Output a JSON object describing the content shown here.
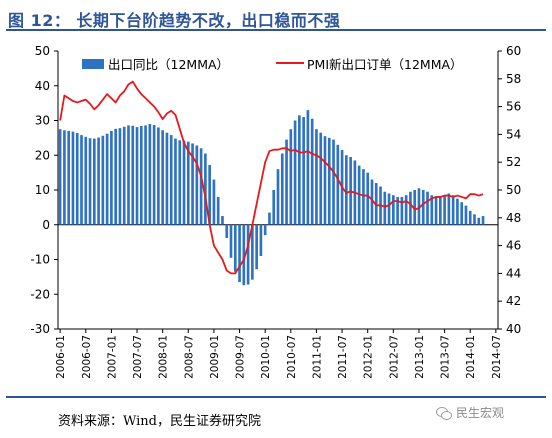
{
  "header": {
    "title": "图 12： 长期下台阶趋势不改，出口稳而不强"
  },
  "footer": {
    "source": "资料来源：Wind，民生证券研究院",
    "watermark": "民生宏观"
  },
  "colors": {
    "bar": "#2e72c1",
    "line": "#e41a1c",
    "accent": "#2e5597"
  },
  "chart_data": {
    "type": "bar+line",
    "title": "",
    "x_ticks": [
      "2006-01",
      "2006-07",
      "2007-01",
      "2007-07",
      "2008-01",
      "2008-07",
      "2009-01",
      "2009-07",
      "2010-01",
      "2010-07",
      "2011-01",
      "2011-07",
      "2012-01",
      "2012-07",
      "2013-01",
      "2013-07",
      "2014-01",
      "2014-07"
    ],
    "y_left": {
      "min": -30,
      "max": 50,
      "ticks": [
        -30,
        -20,
        -10,
        0,
        10,
        20,
        30,
        40,
        50
      ]
    },
    "y_right": {
      "min": 40,
      "max": 60,
      "ticks": [
        40,
        42,
        44,
        46,
        48,
        50,
        52,
        54,
        56,
        58,
        60
      ]
    },
    "legend": [
      "出口同比（12MMA）",
      "PMI新出口订单（12MMA）"
    ],
    "series": [
      {
        "name": "出口同比（12MMA）",
        "axis": "left",
        "type": "bar",
        "start": "2006-01",
        "values": [
          27.5,
          27.2,
          27.0,
          26.8,
          26.4,
          25.8,
          25.3,
          24.9,
          24.8,
          25.1,
          25.6,
          26.2,
          27.0,
          27.6,
          27.8,
          28.2,
          28.6,
          28.5,
          28.1,
          28.4,
          28.6,
          29.0,
          28.7,
          28.0,
          27.2,
          26.5,
          25.8,
          24.8,
          24.3,
          24.2,
          23.9,
          23.4,
          22.8,
          22.0,
          20.5,
          17.2,
          13.0,
          8.0,
          2.5,
          -3.8,
          -9.5,
          -13.5,
          -16.5,
          -17.4,
          -17.2,
          -15.8,
          -12.8,
          -9.0,
          -3.0,
          3.5,
          10.0,
          16.0,
          20.5,
          24.5,
          27.5,
          30.0,
          31.5,
          31.0,
          33.0,
          30.5,
          27.5,
          26.5,
          25.5,
          25.0,
          24.5,
          23.0,
          21.5,
          20.0,
          19.5,
          18.5,
          17.0,
          16.0,
          15.0,
          13.0,
          12.0,
          11.0,
          9.5,
          9.0,
          8.5,
          8.0,
          8.0,
          8.5,
          9.5,
          10.0,
          10.5,
          10.0,
          9.5,
          8.5,
          8.0,
          8.0,
          8.5,
          9.0,
          8.5,
          7.5,
          6.5,
          5.5,
          4.0,
          3.0,
          2.0,
          2.5
        ]
      },
      {
        "name": "PMI新出口订单（12MMA）",
        "axis": "right",
        "type": "line",
        "start": "2006-01",
        "values": [
          55.0,
          56.8,
          56.6,
          56.4,
          56.3,
          56.4,
          56.5,
          56.2,
          55.8,
          56.1,
          56.5,
          56.9,
          56.6,
          56.3,
          56.8,
          57.1,
          57.6,
          57.8,
          57.3,
          56.9,
          56.6,
          56.3,
          56.0,
          55.6,
          55.1,
          55.5,
          55.7,
          55.4,
          54.4,
          53.4,
          52.8,
          52.4,
          51.9,
          51.0,
          49.5,
          47.5,
          46.0,
          45.5,
          45.0,
          44.2,
          44.0,
          44.0,
          44.5,
          45.0,
          46.0,
          47.5,
          49.0,
          50.5,
          52.0,
          52.8,
          52.9,
          52.9,
          53.0,
          53.0,
          52.8,
          52.9,
          52.7,
          52.7,
          52.8,
          52.6,
          52.5,
          52.3,
          52.0,
          51.7,
          51.3,
          50.8,
          50.2,
          49.8,
          49.9,
          49.8,
          49.7,
          49.6,
          49.6,
          49.3,
          48.9,
          48.9,
          48.8,
          48.9,
          49.2,
          49.2,
          49.1,
          49.2,
          49.0,
          48.6,
          48.7,
          49.0,
          49.2,
          49.4,
          49.5,
          49.5,
          49.6,
          49.6,
          49.5,
          49.6,
          49.5,
          49.4,
          49.7,
          49.7,
          49.6,
          49.7
        ]
      }
    ]
  }
}
